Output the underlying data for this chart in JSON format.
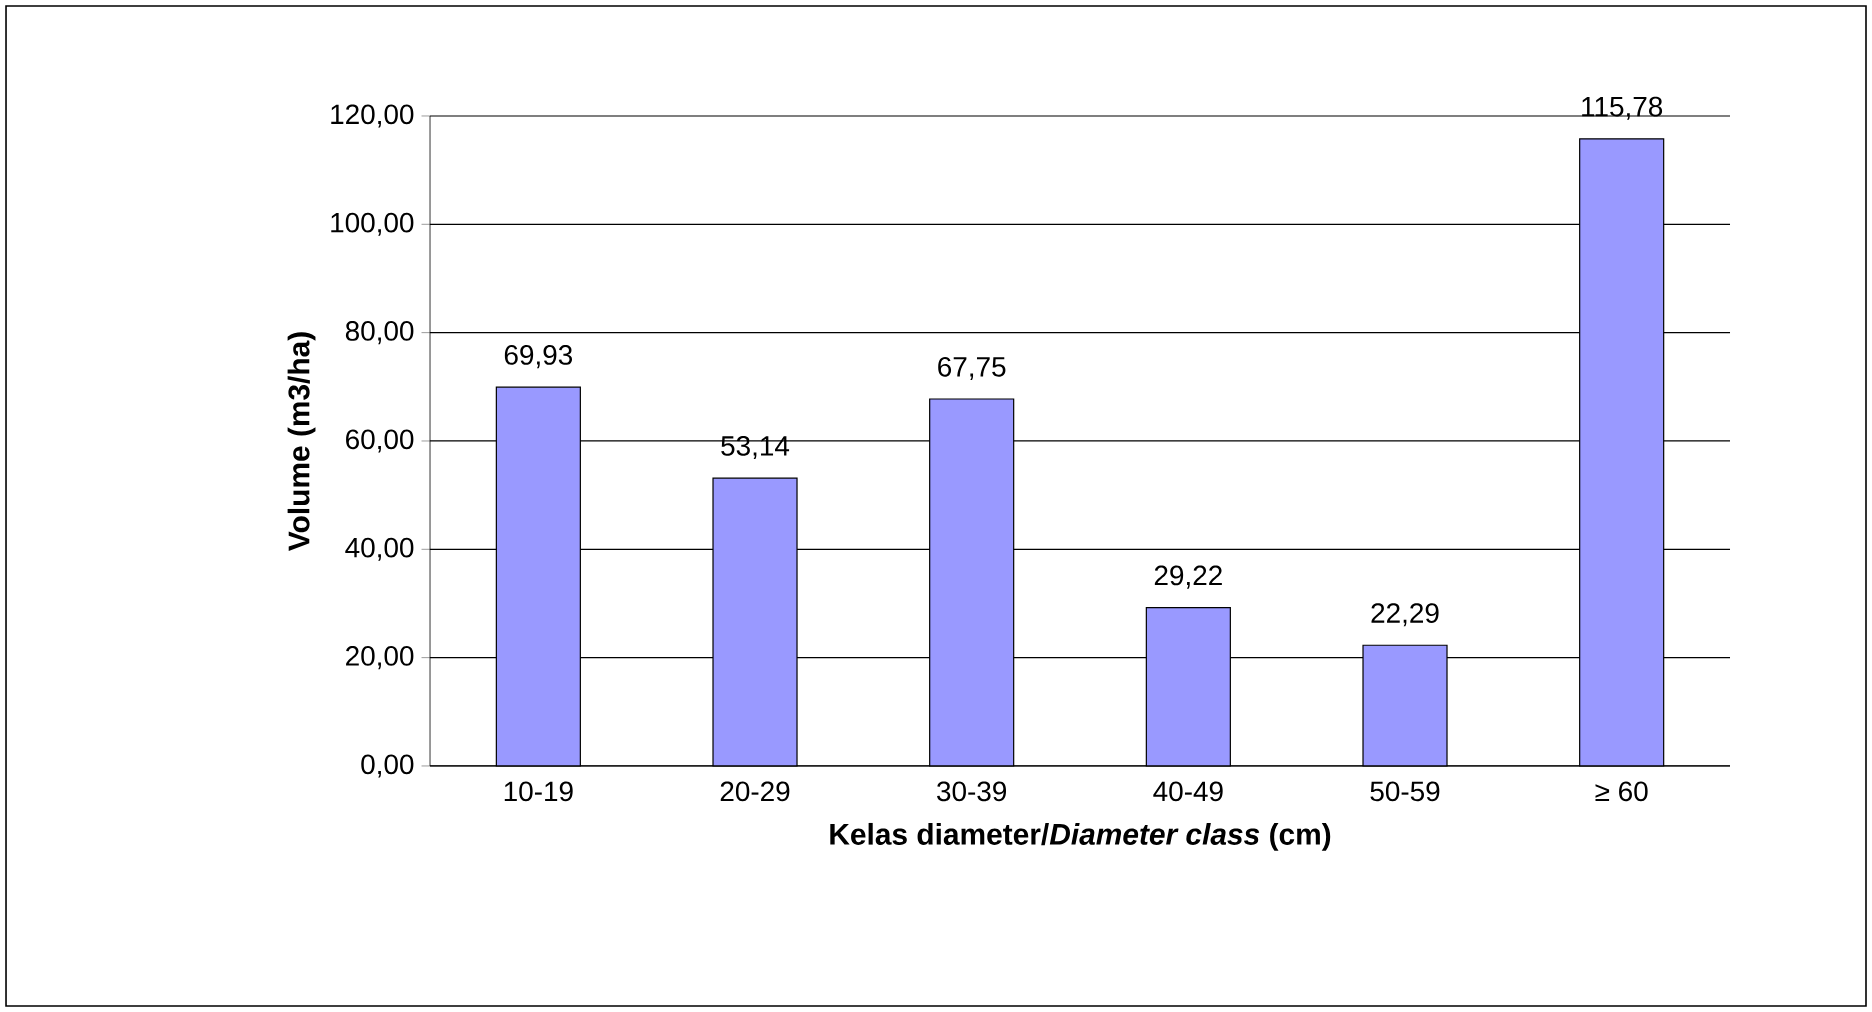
{
  "chart_data": {
    "type": "bar",
    "xlabel": "Kelas diameter/*Diameter class* (cm)",
    "ylabel": "Volume (m3/ha)",
    "categories": [
      "10-19",
      "20-29",
      "30-39",
      "40-49",
      "50-59",
      "≥ 60"
    ],
    "values": [
      69.93,
      53.14,
      67.75,
      29.22,
      22.29,
      115.78
    ],
    "value_labels": [
      "69,93",
      "53,14",
      "67,75",
      "29,22",
      "22,29",
      "115,78"
    ],
    "color": "#9999ff",
    "ylim": [
      0,
      120
    ],
    "yticks": [
      {
        "value": 0,
        "label": "0,00"
      },
      {
        "value": 20,
        "label": "20,00"
      },
      {
        "value": 40,
        "label": "40,00"
      },
      {
        "value": 60,
        "label": "60,00"
      },
      {
        "value": 80,
        "label": "80,00"
      },
      {
        "value": 100,
        "label": "100,00"
      },
      {
        "value": 120,
        "label": "120,00"
      }
    ],
    "grid": "y"
  }
}
